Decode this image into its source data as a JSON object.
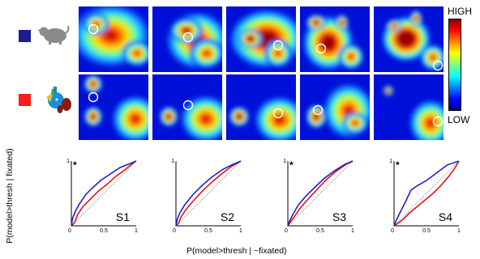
{
  "legend": {
    "rows": [
      {
        "color": "#1c1c8c",
        "icon": "grey-animal-silhouette-icon"
      },
      {
        "color": "#ff1a1a",
        "icon": "colored-parts-silhouette-icon"
      }
    ]
  },
  "colorbar": {
    "high": "HIGH",
    "low": "LOW"
  },
  "axes": {
    "ylabel": "P(model>thresh | fixated)",
    "xlabel": "P(model>thresh | ~fixated)",
    "ticks": [
      "0",
      "0.5",
      "1"
    ],
    "star": "*"
  },
  "panels": [
    {
      "label": "S1",
      "star": true
    },
    {
      "label": "S2",
      "star": false
    },
    {
      "label": "S3",
      "star": true
    },
    {
      "label": "S4",
      "star": true
    }
  ],
  "colors": {
    "blue_series": "#1f1fd0",
    "red_series": "#e01414",
    "chance": "#555555"
  }
}
